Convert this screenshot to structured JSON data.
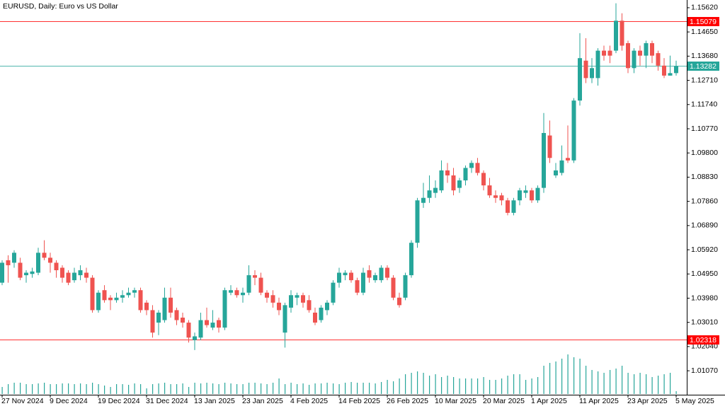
{
  "chart_data": {
    "type": "candlestick",
    "title": "EURUSD, Daily:  Euro vs US Dollar",
    "categories": [
      "27 Nov 2024",
      null,
      null,
      null,
      null,
      null,
      null,
      null,
      "9 Dec 2024",
      null,
      null,
      null,
      null,
      null,
      null,
      null,
      "19 Dec 2024",
      null,
      null,
      null,
      null,
      null,
      null,
      null,
      "31 Dec 2024",
      null,
      null,
      null,
      null,
      null,
      null,
      null,
      "13 Jan 2025",
      null,
      null,
      null,
      null,
      null,
      null,
      null,
      "23 Jan 2025",
      null,
      null,
      null,
      null,
      null,
      null,
      null,
      "4 Feb 2025",
      null,
      null,
      null,
      null,
      null,
      null,
      null,
      "14 Feb 2025",
      null,
      null,
      null,
      null,
      null,
      null,
      null,
      "26 Feb 2025",
      null,
      null,
      null,
      null,
      null,
      null,
      null,
      "10 Mar 2025",
      null,
      null,
      null,
      null,
      null,
      null,
      null,
      "20 Mar 2025",
      null,
      null,
      null,
      null,
      null,
      null,
      null,
      "1 Apr 2025",
      null,
      null,
      null,
      null,
      null,
      null,
      null,
      "11 Apr 2025",
      null,
      null,
      null,
      null,
      null,
      null,
      null,
      "23 Apr 2025",
      null,
      null,
      null,
      null,
      null,
      null,
      null,
      "5 May 2025"
    ],
    "open": [
      1.046,
      1.055,
      1.054,
      1.054,
      1.049,
      1.0495,
      1.05,
      1.058,
      1.056,
      1.054,
      1.052,
      1.05,
      1.047,
      1.049,
      1.05,
      1.048,
      1.035,
      1.043,
      1.04,
      1.039,
      1.04,
      1.041,
      1.042,
      1.043,
      1.038,
      1.035,
      1.03,
      1.031,
      1.04,
      1.035,
      1.032,
      1.03,
      1.023,
      1.024,
      1.031,
      1.028,
      1.031,
      1.028,
      1.042,
      1.043,
      1.041,
      1.042,
      1.049,
      1.048,
      1.042,
      1.041,
      1.038,
      1.026,
      1.036,
      1.04,
      1.041,
      1.039,
      1.034,
      1.031,
      1.035,
      1.038,
      1.046,
      1.049,
      1.05,
      1.047,
      1.042,
      1.051,
      1.047,
      1.047,
      1.052,
      1.048,
      1.04,
      1.04,
      1.049,
      1.062,
      1.078,
      1.08,
      1.082,
      1.083,
      1.091,
      1.089,
      1.084,
      1.087,
      1.092,
      1.094,
      1.09,
      1.085,
      1.081,
      1.081,
      1.079,
      1.074,
      1.079,
      1.082,
      1.083,
      1.079,
      1.084,
      1.105,
      1.089,
      1.09,
      1.096,
      1.095,
      1.119,
      1.135,
      1.128,
      1.128,
      1.139,
      1.139,
      1.139,
      1.151,
      1.142,
      1.132,
      1.139,
      1.137,
      1.142,
      1.138,
      1.133,
      1.129,
      1.13
    ],
    "high": [
      1.055,
      1.057,
      1.059,
      1.056,
      1.051,
      1.052,
      1.06,
      1.063,
      1.058,
      1.055,
      1.053,
      1.051,
      1.052,
      1.053,
      1.052,
      1.049,
      1.043,
      1.045,
      1.041,
      1.042,
      1.043,
      1.044,
      1.044,
      1.044,
      1.039,
      1.037,
      1.035,
      1.044,
      1.044,
      1.036,
      1.034,
      1.031,
      1.026,
      1.034,
      1.036,
      1.035,
      1.032,
      1.044,
      1.045,
      1.044,
      1.044,
      1.053,
      1.051,
      1.05,
      1.043,
      1.043,
      1.04,
      1.038,
      1.043,
      1.042,
      1.042,
      1.041,
      1.036,
      1.037,
      1.039,
      1.047,
      1.052,
      1.051,
      1.051,
      1.048,
      1.052,
      1.053,
      1.05,
      1.053,
      1.053,
      1.049,
      1.042,
      1.05,
      1.063,
      1.08,
      1.086,
      1.089,
      1.087,
      1.095,
      1.094,
      1.092,
      1.088,
      1.093,
      1.095,
      1.096,
      1.091,
      1.088,
      1.083,
      1.082,
      1.08,
      1.08,
      1.084,
      1.085,
      1.084,
      1.085,
      1.114,
      1.111,
      1.094,
      1.101,
      1.109,
      1.12,
      1.146,
      1.144,
      1.136,
      1.14,
      1.141,
      1.141,
      1.158,
      1.154,
      1.143,
      1.14,
      1.141,
      1.143,
      1.143,
      1.139,
      1.136,
      1.137,
      1.135
    ],
    "low": [
      1.045,
      1.046,
      1.052,
      1.047,
      1.046,
      1.048,
      1.049,
      1.055,
      1.05,
      1.048,
      1.046,
      1.045,
      1.046,
      1.047,
      1.046,
      1.034,
      1.034,
      1.038,
      1.035,
      1.038,
      1.038,
      1.04,
      1.04,
      1.034,
      1.033,
      1.024,
      1.025,
      1.03,
      1.032,
      1.029,
      1.028,
      1.022,
      1.019,
      1.023,
      1.028,
      1.027,
      1.026,
      1.027,
      1.041,
      1.04,
      1.038,
      1.041,
      1.045,
      1.041,
      1.038,
      1.036,
      1.033,
      1.02,
      1.034,
      1.037,
      1.036,
      1.034,
      1.029,
      1.03,
      1.033,
      1.037,
      1.044,
      1.047,
      1.046,
      1.041,
      1.041,
      1.046,
      1.046,
      1.046,
      1.047,
      1.039,
      1.036,
      1.039,
      1.048,
      1.06,
      1.076,
      1.078,
      1.08,
      1.082,
      1.086,
      1.081,
      1.082,
      1.085,
      1.09,
      1.089,
      1.083,
      1.08,
      1.078,
      1.077,
      1.073,
      1.073,
      1.077,
      1.08,
      1.078,
      1.078,
      1.082,
      1.094,
      1.088,
      1.089,
      1.094,
      1.094,
      1.117,
      1.126,
      1.126,
      1.125,
      1.135,
      1.134,
      1.138,
      1.139,
      1.13,
      1.13,
      1.133,
      1.132,
      1.134,
      1.131,
      1.128,
      1.129,
      1.129
    ],
    "close": [
      1.054,
      1.053,
      1.058,
      1.048,
      1.05,
      1.0505,
      1.058,
      1.056,
      1.054,
      1.051,
      1.048,
      1.046,
      1.05,
      1.051,
      1.048,
      1.035,
      1.042,
      1.039,
      1.039,
      1.04,
      1.041,
      1.042,
      1.043,
      1.035,
      1.035,
      1.026,
      1.034,
      1.04,
      1.034,
      1.031,
      1.03,
      1.024,
      1.0245,
      1.031,
      1.029,
      1.03,
      1.028,
      1.043,
      1.043,
      1.041,
      1.042,
      1.049,
      1.048,
      1.042,
      1.04,
      1.038,
      1.035,
      1.037,
      1.041,
      1.041,
      1.038,
      1.035,
      1.03,
      1.036,
      1.038,
      1.046,
      1.05,
      1.05,
      1.047,
      1.042,
      1.05,
      1.048,
      1.049,
      1.052,
      1.048,
      1.04,
      1.037,
      1.049,
      1.062,
      1.079,
      1.08,
      1.083,
      1.084,
      1.091,
      1.089,
      1.083,
      1.087,
      1.092,
      1.094,
      1.09,
      1.085,
      1.081,
      1.08,
      1.079,
      1.074,
      1.079,
      1.083,
      1.083,
      1.079,
      1.084,
      1.106,
      1.096,
      1.091,
      1.095,
      1.095,
      1.119,
      1.136,
      1.128,
      1.132,
      1.139,
      1.137,
      1.137,
      1.151,
      1.141,
      1.132,
      1.139,
      1.137,
      1.142,
      1.137,
      1.133,
      1.129,
      1.13,
      1.13282
    ],
    "volume": [
      10,
      14,
      16,
      16,
      14,
      14,
      15,
      16,
      14,
      14,
      15,
      15,
      14,
      15,
      14,
      16,
      14,
      12,
      10,
      14,
      14,
      13,
      15,
      14,
      8,
      14,
      15,
      16,
      14,
      14,
      15,
      10,
      16,
      15,
      16,
      15,
      14,
      16,
      15,
      14,
      14,
      16,
      16,
      15,
      14,
      16,
      22,
      14,
      16,
      14,
      15,
      13,
      15,
      15,
      16,
      15,
      14,
      16,
      17,
      16,
      16,
      16,
      15,
      17,
      20,
      18,
      22,
      28,
      30,
      32,
      30,
      26,
      28,
      24,
      26,
      24,
      22,
      22,
      22,
      22,
      24,
      20,
      20,
      22,
      26,
      28,
      28,
      20,
      22,
      24,
      40,
      44,
      46,
      50,
      56,
      52,
      50,
      40,
      34,
      32,
      30,
      34,
      36,
      40,
      30,
      28,
      30,
      28,
      24,
      26,
      28,
      30,
      4
    ],
    "volume_lim": [
      0,
      60
    ],
    "up_color": "#26a69a",
    "down_color": "#ef5350",
    "volume_color": "#26a69a",
    "ylim": [
      1.0011,
      1.1593
    ],
    "yticks": [
      {
        "value": 1.1562,
        "label": "1.15620"
      },
      {
        "value": 1.1465,
        "label": "1.14650"
      },
      {
        "value": 1.1368,
        "label": "1.13680"
      },
      {
        "value": 1.1271,
        "label": "1.12710"
      },
      {
        "value": 1.1174,
        "label": "1.11740"
      },
      {
        "value": 1.1077,
        "label": "1.10770"
      },
      {
        "value": 1.098,
        "label": "1.09800"
      },
      {
        "value": 1.0883,
        "label": "1.08830"
      },
      {
        "value": 1.0786,
        "label": "1.07860"
      },
      {
        "value": 1.0689,
        "label": "1.06890"
      },
      {
        "value": 1.0592,
        "label": "1.05920"
      },
      {
        "value": 1.0495,
        "label": "1.04950"
      },
      {
        "value": 1.0398,
        "label": "1.03980"
      },
      {
        "value": 1.0301,
        "label": "1.03010"
      },
      {
        "value": 1.0204,
        "label": "1.02040"
      },
      {
        "value": 1.0107,
        "label": "1.01070"
      }
    ],
    "levels": [
      {
        "value": 1.15079,
        "color": "#ff0000"
      },
      {
        "value": 1.13282,
        "color": "#26a69a"
      },
      {
        "value": 1.02318,
        "color": "#ff0000"
      }
    ]
  }
}
